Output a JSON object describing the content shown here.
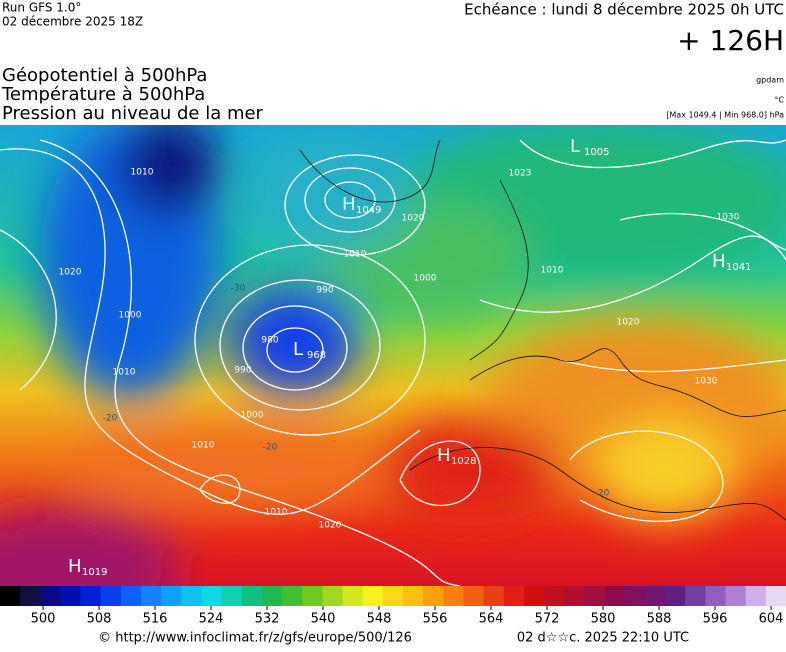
{
  "header": {
    "run": "Run GFS 1.0°",
    "date": "02 décembre 2025 18Z",
    "echeance": "Echéance : lundi 8 décembre 2025 0h UTC",
    "lead": "+ 126H",
    "titles": [
      "Géopotentiel à 500hPa",
      "Température à 500hPa",
      "Pression au niveau de la mer"
    ],
    "units": [
      "gpdam",
      "°C",
      "[Max 1049.4 | Min 968.0] hPa"
    ]
  },
  "centers": [
    {
      "letter": "H",
      "value": 1049
    },
    {
      "letter": "L",
      "value": 968
    },
    {
      "letter": "L",
      "value": 1005
    },
    {
      "letter": "H",
      "value": 1041
    },
    {
      "letter": "H",
      "value": 1028
    },
    {
      "letter": "H",
      "value": 1019
    }
  ],
  "contour_labels": [
    1010,
    1020,
    1000,
    1010,
    1010,
    1010,
    1020,
    990,
    1000,
    1010,
    1020,
    980,
    990,
    1000,
    1030,
    1020,
    1030,
    1010,
    1023,
    -30,
    -20,
    -20,
    -20
  ],
  "colorbar": {
    "ticks": [
      500,
      508,
      516,
      524,
      532,
      540,
      548,
      556,
      564,
      572,
      580,
      588,
      596,
      604
    ]
  },
  "footer": {
    "source": "© http://www.infoclimat.fr/z/gfs/europe/500/126",
    "stamp": "02 d☆☆c. 2025 22:10 UTC"
  }
}
